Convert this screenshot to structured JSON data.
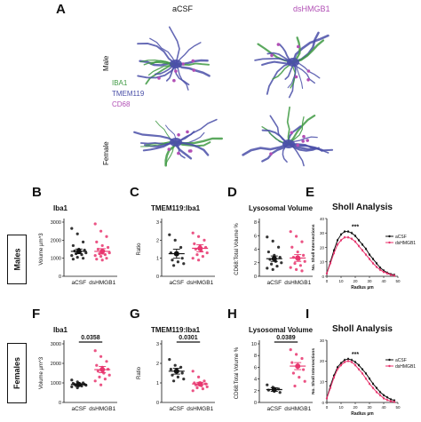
{
  "panel_a": {
    "letter": "A",
    "columns": [
      "aCSF",
      "dsHMGB1"
    ],
    "rows": [
      "Male",
      "Female"
    ],
    "legend": [
      {
        "label": "IBA1",
        "color": "#3f9a43"
      },
      {
        "label": "TMEM119",
        "color": "#4a4fa8"
      },
      {
        "label": "CD68",
        "color": "#b14fb5"
      }
    ]
  },
  "sex_labels": {
    "males": "Males",
    "females": "Females"
  },
  "colors": {
    "acsf": "#111111",
    "dshmgb1": "#e8356e"
  },
  "chart_data": [
    {
      "id": "B",
      "letter": "B",
      "type": "scatter",
      "title": "Iba1",
      "ylabel": "Volume µm^3",
      "categories": [
        "aCSF",
        "dsHMGB1"
      ],
      "ylim": [
        0,
        3000
      ],
      "yticks": [
        0,
        1000,
        2000,
        3000
      ],
      "means": [
        1380,
        1380
      ],
      "sem": [
        130,
        150
      ],
      "pvalue": "",
      "series": [
        {
          "category": "aCSF",
          "values": [
            2650,
            2350,
            1900,
            1700,
            1500,
            1450,
            1400,
            1350,
            1300,
            1250,
            1200,
            1150,
            1050,
            1000,
            950
          ]
        },
        {
          "category": "dsHMGB1",
          "values": [
            2900,
            2500,
            2200,
            1900,
            1700,
            1600,
            1500,
            1400,
            1300,
            1250,
            1200,
            1150,
            1100,
            1000,
            950,
            900
          ]
        }
      ]
    },
    {
      "id": "C",
      "letter": "C",
      "type": "scatter",
      "title": "TMEM119:Iba1",
      "ylabel": "Ratio",
      "categories": [
        "aCSF",
        "dsHMGB1"
      ],
      "ylim": [
        0,
        3
      ],
      "yticks": [
        0,
        1,
        2,
        3
      ],
      "means": [
        1.25,
        1.55
      ],
      "sem": [
        0.25,
        0.2
      ],
      "pvalue": "",
      "series": [
        {
          "category": "aCSF",
          "values": [
            2.3,
            2.0,
            1.6,
            1.3,
            1.2,
            1.0,
            0.9,
            0.8,
            0.7,
            0.6
          ]
        },
        {
          "category": "dsHMGB1",
          "values": [
            2.4,
            2.2,
            2.0,
            1.8,
            1.7,
            1.6,
            1.5,
            1.4,
            1.3,
            1.2,
            1.1,
            1.0,
            0.9
          ]
        }
      ]
    },
    {
      "id": "D",
      "letter": "D",
      "type": "scatter",
      "title": "Lysosomal Volume",
      "ylabel": "CD68:Total Volume %",
      "categories": [
        "aCSF",
        "dsHMGB1"
      ],
      "ylim": [
        0,
        8
      ],
      "yticks": [
        0,
        2,
        4,
        6,
        8
      ],
      "means": [
        2.6,
        2.7
      ],
      "sem": [
        0.4,
        0.5
      ],
      "pvalue": "",
      "series": [
        {
          "category": "aCSF",
          "values": [
            5.8,
            5.2,
            4.3,
            3.6,
            3.1,
            2.8,
            2.5,
            2.2,
            2.0,
            1.8,
            1.5,
            1.2,
            1.0
          ]
        },
        {
          "category": "dsHMGB1",
          "values": [
            6.6,
            5.9,
            5.1,
            4.3,
            3.6,
            3.1,
            2.8,
            2.5,
            2.2,
            1.9,
            1.6,
            1.3,
            1.0,
            0.8
          ]
        }
      ]
    },
    {
      "id": "E",
      "letter": "E",
      "type": "line",
      "title": "Sholl Analysis",
      "ylabel": "No. Sholl Intersections",
      "xlabel": "Radius µm",
      "xlim": [
        0,
        50
      ],
      "ylim": [
        0,
        40
      ],
      "xticks": [
        0,
        10,
        20,
        30,
        40,
        50
      ],
      "yticks": [
        0,
        10,
        20,
        30,
        40
      ],
      "annotation": "***",
      "x": [
        0,
        2.5,
        5,
        7.5,
        10,
        12.5,
        15,
        17.5,
        20,
        22.5,
        25,
        27.5,
        30,
        32.5,
        35,
        37.5,
        40,
        42.5,
        45,
        47.5
      ],
      "series": [
        {
          "name": "aCSF",
          "values": [
            2,
            10,
            18,
            25,
            29,
            31,
            31,
            30,
            28,
            25,
            22,
            19,
            15,
            12,
            9,
            6,
            4,
            2.5,
            1.5,
            1
          ]
        },
        {
          "name": "dsHMGB1",
          "values": [
            2,
            9,
            16,
            22,
            25,
            27,
            27,
            26,
            24,
            21,
            18,
            15,
            12,
            9,
            6.5,
            4.5,
            3,
            2,
            1,
            0.5
          ]
        }
      ]
    },
    {
      "id": "F",
      "letter": "F",
      "type": "scatter",
      "title": "Iba1",
      "ylabel": "Volume µm^3",
      "categories": [
        "aCSF",
        "dsHMGB1"
      ],
      "ylim": [
        0,
        3000
      ],
      "yticks": [
        0,
        1000,
        2000,
        3000
      ],
      "means": [
        920,
        1680
      ],
      "sem": [
        40,
        160
      ],
      "pvalue": "0.0358",
      "series": [
        {
          "category": "aCSF",
          "values": [
            1150,
            1050,
            1000,
            980,
            950,
            930,
            920,
            900,
            880,
            860,
            840,
            800,
            750
          ]
        },
        {
          "category": "dsHMGB1",
          "values": [
            2650,
            2350,
            2100,
            1900,
            1800,
            1700,
            1600,
            1500,
            1400,
            1300,
            1200,
            1100,
            900
          ]
        }
      ]
    },
    {
      "id": "G",
      "letter": "G",
      "type": "scatter",
      "title": "TMEM119:Iba1",
      "ylabel": "Ratio",
      "categories": [
        "aCSF",
        "dsHMGB1"
      ],
      "ylim": [
        0,
        3
      ],
      "yticks": [
        0,
        1,
        2,
        3
      ],
      "means": [
        1.6,
        0.95
      ],
      "sem": [
        0.15,
        0.08
      ],
      "pvalue": "0.0301",
      "series": [
        {
          "category": "aCSF",
          "values": [
            2.2,
            1.9,
            1.8,
            1.7,
            1.6,
            1.5,
            1.4,
            1.3,
            1.2,
            1.1
          ]
        },
        {
          "category": "dsHMGB1",
          "values": [
            1.6,
            1.3,
            1.1,
            1.0,
            1.0,
            0.95,
            0.9,
            0.85,
            0.8,
            0.75,
            0.7,
            0.6
          ]
        }
      ]
    },
    {
      "id": "H",
      "letter": "H",
      "type": "scatter",
      "title": "Lysosomal Volume",
      "ylabel": "CD68:Total Volume %",
      "categories": [
        "aCSF",
        "dsHMGB1"
      ],
      "ylim": [
        0,
        10
      ],
      "yticks": [
        0,
        2,
        4,
        6,
        8,
        10
      ],
      "means": [
        2.2,
        6.2
      ],
      "sem": [
        0.3,
        0.6
      ],
      "pvalue": "0.0389",
      "series": [
        {
          "category": "aCSF",
          "values": [
            3.0,
            2.6,
            2.3,
            2.1,
            1.9,
            1.7
          ]
        },
        {
          "category": "dsHMGB1",
          "values": [
            9.0,
            8.2,
            7.5,
            6.8,
            6.2,
            5.6,
            5.0,
            4.3,
            3.6,
            2.8
          ]
        }
      ]
    },
    {
      "id": "I",
      "letter": "I",
      "type": "line",
      "title": "Sholl Analysis",
      "ylabel": "No. Sholl Intersections",
      "xlabel": "Radius µm",
      "xlim": [
        0,
        50
      ],
      "ylim": [
        0,
        30
      ],
      "xticks": [
        0,
        10,
        20,
        30,
        40,
        50
      ],
      "yticks": [
        0,
        10,
        20,
        30
      ],
      "annotation": "***",
      "x": [
        0,
        2.5,
        5,
        7.5,
        10,
        12.5,
        15,
        17.5,
        20,
        22.5,
        25,
        27.5,
        30,
        32.5,
        35,
        37.5,
        40,
        42.5,
        45,
        47.5
      ],
      "series": [
        {
          "name": "aCSF",
          "values": [
            2,
            8,
            13,
            17,
            19,
            20.5,
            21,
            20.5,
            19.5,
            18,
            16,
            14,
            11.5,
            9,
            7,
            5,
            3.5,
            2.5,
            1.5,
            1
          ]
        },
        {
          "name": "dsHMGB1",
          "values": [
            2,
            7,
            12,
            16,
            18,
            19.5,
            20,
            19.5,
            18,
            16,
            14,
            11.5,
            9,
            7,
            5,
            3.5,
            2,
            1.2,
            0.6,
            0.3
          ]
        }
      ]
    }
  ]
}
